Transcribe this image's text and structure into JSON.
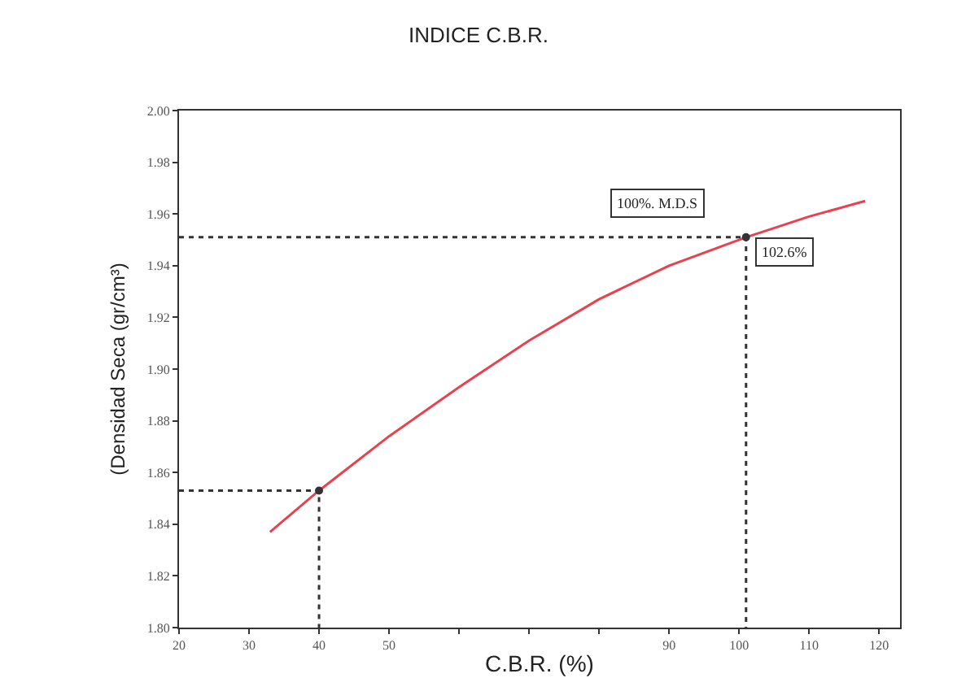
{
  "chart_data": {
    "type": "line",
    "title": "INDICE C.B.R.",
    "xlabel": "C.B.R. (%)",
    "ylabel": "(Densidad Seca (gr/cm³)",
    "xlim": [
      20,
      123
    ],
    "xticks": [
      20,
      30,
      40,
      50,
      {
        "value": 60,
        "label": null
      },
      {
        "value": 70,
        "label": null
      },
      {
        "value": 80,
        "label": null
      },
      90,
      100,
      110,
      120
    ],
    "ylim": [
      1.8,
      2.0
    ],
    "yticks": [
      {
        "value": 1.8,
        "label": "1.80"
      },
      {
        "value": 1.82,
        "label": "1.82"
      },
      {
        "value": 1.84,
        "label": "1.84"
      },
      {
        "value": 1.86,
        "label": "1.86"
      },
      {
        "value": 1.88,
        "label": "1.88"
      },
      {
        "value": 1.9,
        "label": "1.90"
      },
      {
        "value": 1.92,
        "label": "1.92"
      },
      {
        "value": 1.94,
        "label": "1.94"
      },
      {
        "value": 1.96,
        "label": "1.96"
      },
      {
        "value": 1.98,
        "label": "1.98"
      },
      {
        "value": 2.0,
        "label": "2.00"
      }
    ],
    "series": [
      {
        "color": "#e8414f",
        "marker": "none",
        "line_style": "solid",
        "x": [
          33,
          40,
          50,
          60,
          70,
          80,
          90,
          101,
          110,
          118
        ],
        "values": [
          1.837,
          1.853,
          1.874,
          1.893,
          1.911,
          1.927,
          1.94,
          1.951,
          1.959,
          1.965
        ]
      },
      {
        "color": "#333333",
        "marker": "none",
        "line_style": "dotted",
        "x": [
          20,
          40,
          40,
          null,
          20,
          101,
          101
        ],
        "values": [
          1.853,
          1.853,
          1.8,
          null,
          1.951,
          1.951,
          1.8
        ]
      },
      {
        "type": "scatter",
        "color": "#333333",
        "marker": "circle",
        "x": [
          40,
          101
        ],
        "values": [
          1.853,
          1.951
        ]
      }
    ],
    "annotations": [
      "100%. M.D.S",
      "102.6%"
    ]
  }
}
